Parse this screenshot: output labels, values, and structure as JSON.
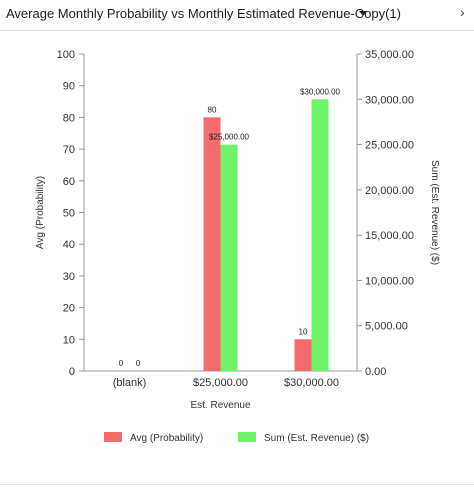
{
  "header": {
    "title": "Average Monthly Probability vs Monthly Estimated Revenue-Copy(1)",
    "dropdown_icon": "caret-down-icon",
    "expand_icon": "chevron-right-icon"
  },
  "colors": {
    "probability": "#f36b6b",
    "revenue": "#6ef36b",
    "axis": "#999999"
  },
  "chart_data": {
    "type": "bar",
    "xlabel": "Est. Revenue",
    "ylabel": "Avg (Probability)",
    "y2label": "Sum (Est. Revenue) ($)",
    "categories": [
      "(blank)",
      "$25,000.00",
      "$30,000.00"
    ],
    "ylim": [
      0,
      100
    ],
    "y_ticks": [
      "0",
      "10",
      "20",
      "30",
      "40",
      "50",
      "60",
      "70",
      "80",
      "90",
      "100"
    ],
    "y2lim": [
      0,
      35000
    ],
    "y2_ticks": [
      "0.00",
      "5,000.00",
      "10,000.00",
      "15,000.00",
      "20,000.00",
      "25,000.00",
      "30,000.00",
      "35,000.00"
    ],
    "series": [
      {
        "name": "Avg (Probability)",
        "axis": "left",
        "values": [
          0,
          80,
          10
        ],
        "labels": [
          "0",
          "80",
          "10"
        ]
      },
      {
        "name": "Sum (Est. Revenue) ($)",
        "axis": "right",
        "values": [
          0,
          25000,
          30000
        ],
        "labels": [
          "0",
          "$25,000.00",
          "$30,000.00"
        ]
      }
    ],
    "legend": {
      "position": "bottom"
    },
    "grid": false
  }
}
